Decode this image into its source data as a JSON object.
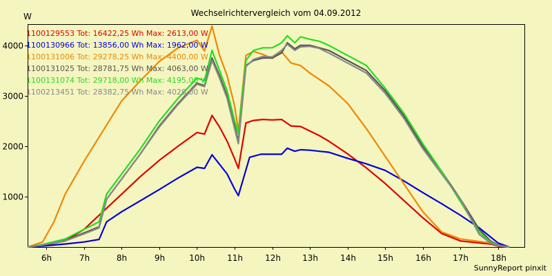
{
  "chart_data": {
    "type": "line",
    "title": "Wechselrichtervergleich vom 04.09.2012",
    "ylabel": "W",
    "xlabel": "",
    "footer": "SunnyReport pinxit",
    "xlim": [
      5.5,
      18.7
    ],
    "ylim": [
      0,
      4420
    ],
    "x_ticks": [
      6,
      7,
      8,
      9,
      10,
      11,
      12,
      13,
      14,
      15,
      16,
      17,
      18
    ],
    "x_tick_labels": [
      "6h",
      "7h",
      "8h",
      "9h",
      "10h",
      "11h",
      "12h",
      "13h",
      "14h",
      "15h",
      "16h",
      "17h",
      "18h"
    ],
    "y_ticks": [
      1000,
      2000,
      3000,
      4000
    ],
    "y_tick_labels": [
      "1000",
      "2000",
      "3000",
      "4000"
    ],
    "grid": false,
    "legend_position": "top-left",
    "series": [
      {
        "name": "1100129553",
        "label": "1100129553 Tot: 16422,25 Wh Max: 2613,00 W",
        "color": "#dd0000",
        "x": [
          5.5,
          5.9,
          6.5,
          7.0,
          7.5,
          8.0,
          8.5,
          9.0,
          9.5,
          10.0,
          10.2,
          10.4,
          10.6,
          10.8,
          11.0,
          11.1,
          11.3,
          11.5,
          11.75,
          12.0,
          12.25,
          12.5,
          12.75,
          13.0,
          13.25,
          13.5,
          14.0,
          14.5,
          15.0,
          15.5,
          16.0,
          16.5,
          17.0,
          17.5,
          17.8,
          18.0,
          18.3
        ],
        "values": [
          0,
          30,
          120,
          350,
          700,
          1050,
          1400,
          1720,
          2000,
          2270,
          2240,
          2610,
          2380,
          2100,
          1750,
          1560,
          2460,
          2510,
          2530,
          2520,
          2530,
          2400,
          2390,
          2300,
          2210,
          2100,
          1850,
          1570,
          1260,
          920,
          580,
          270,
          120,
          80,
          60,
          20,
          0
        ]
      },
      {
        "name": "1100130966",
        "label": "1100130966 Tot: 13856,00 Wh Max: 1962,00 W",
        "color": "#0000dd",
        "x": [
          5.5,
          5.9,
          6.5,
          7.0,
          7.4,
          7.6,
          8.0,
          8.5,
          9.0,
          9.5,
          10.0,
          10.2,
          10.4,
          10.6,
          10.8,
          11.0,
          11.1,
          11.4,
          11.7,
          12.0,
          12.25,
          12.4,
          12.6,
          12.75,
          13.0,
          13.25,
          13.5,
          14.0,
          14.5,
          15.0,
          15.5,
          16.0,
          16.5,
          17.0,
          17.5,
          17.8,
          18.0,
          18.3
        ],
        "values": [
          0,
          20,
          60,
          100,
          150,
          500,
          700,
          920,
          1140,
          1370,
          1580,
          1560,
          1830,
          1640,
          1450,
          1150,
          1020,
          1780,
          1840,
          1840,
          1840,
          1960,
          1900,
          1930,
          1920,
          1900,
          1880,
          1760,
          1650,
          1520,
          1310,
          1080,
          860,
          630,
          380,
          200,
          80,
          0
        ]
      },
      {
        "name": "1100131006",
        "label": "1100131006 Tot: 29278,25 Wh Max: 4400,00 W",
        "color": "#ee8800",
        "x": [
          5.5,
          5.9,
          6.2,
          6.5,
          7.0,
          7.5,
          8.0,
          8.5,
          9.0,
          9.5,
          10.0,
          10.2,
          10.4,
          10.6,
          10.8,
          11.0,
          11.1,
          11.3,
          11.5,
          11.75,
          12.0,
          12.25,
          12.5,
          12.75,
          13.0,
          13.5,
          14.0,
          14.5,
          15.0,
          15.5,
          16.0,
          16.5,
          17.0,
          17.5,
          17.8,
          18.0,
          18.3
        ],
        "values": [
          0,
          100,
          500,
          1050,
          1700,
          2300,
          2900,
          3300,
          3680,
          3950,
          4100,
          3890,
          4380,
          3800,
          3400,
          2800,
          2300,
          3800,
          3880,
          3820,
          3740,
          3870,
          3650,
          3600,
          3450,
          3200,
          2850,
          2350,
          1800,
          1250,
          700,
          300,
          160,
          110,
          80,
          30,
          0
        ]
      },
      {
        "name": "1100131025",
        "label": "1100131025 Tot: 28781,75 Wh Max: 4063,00 W",
        "color": "#555555",
        "x": [
          5.5,
          5.9,
          6.5,
          7.0,
          7.4,
          7.6,
          8.0,
          8.5,
          9.0,
          9.5,
          10.0,
          10.2,
          10.4,
          10.6,
          10.8,
          11.0,
          11.1,
          11.3,
          11.5,
          11.75,
          12.0,
          12.25,
          12.4,
          12.6,
          12.75,
          13.0,
          13.25,
          13.5,
          14.0,
          14.5,
          15.0,
          15.5,
          16.0,
          16.5,
          17.0,
          17.5,
          17.8,
          18.0,
          18.3
        ],
        "values": [
          0,
          40,
          130,
          280,
          400,
          950,
          1350,
          1850,
          2400,
          2850,
          3250,
          3200,
          3750,
          3400,
          3000,
          2400,
          2100,
          3600,
          3700,
          3750,
          3750,
          3850,
          4050,
          3930,
          4000,
          4000,
          3950,
          3900,
          3700,
          3500,
          3100,
          2600,
          2000,
          1500,
          950,
          350,
          120,
          40,
          0
        ]
      },
      {
        "name": "1100131074",
        "label": "1100131074 Tot: 29718,00 Wh Max: 4195,00 W",
        "color": "#22dd22",
        "x": [
          5.5,
          5.9,
          6.5,
          7.0,
          7.4,
          7.6,
          8.0,
          8.5,
          9.0,
          9.5,
          10.0,
          10.2,
          10.4,
          10.6,
          10.8,
          11.0,
          11.1,
          11.3,
          11.5,
          11.75,
          12.0,
          12.25,
          12.4,
          12.6,
          12.75,
          13.0,
          13.25,
          13.5,
          14.0,
          14.5,
          15.0,
          15.5,
          16.0,
          16.5,
          17.0,
          17.5,
          17.8,
          18.0,
          18.3
        ],
        "values": [
          0,
          50,
          160,
          350,
          500,
          1050,
          1450,
          1950,
          2500,
          2950,
          3350,
          3300,
          3900,
          3500,
          3100,
          2500,
          2250,
          3700,
          3900,
          3950,
          3950,
          4050,
          4190,
          4050,
          4170,
          4120,
          4080,
          4000,
          3800,
          3600,
          3150,
          2650,
          2050,
          1500,
          900,
          300,
          100,
          30,
          0
        ]
      },
      {
        "name": "1100213451",
        "label": "1100213451 Tot: 28382,75 Wh Max: 4028,00 W",
        "color": "#888888",
        "x": [
          5.5,
          5.9,
          6.5,
          7.0,
          7.4,
          7.6,
          8.0,
          8.5,
          9.0,
          9.5,
          10.0,
          10.2,
          10.4,
          10.6,
          10.8,
          11.0,
          11.1,
          11.3,
          11.5,
          11.75,
          12.0,
          12.25,
          12.4,
          12.6,
          12.75,
          13.0,
          13.25,
          13.5,
          14.0,
          14.5,
          15.0,
          15.5,
          16.0,
          16.5,
          17.0,
          17.5,
          17.8,
          18.0,
          18.3
        ],
        "values": [
          0,
          40,
          120,
          260,
          380,
          950,
          1350,
          1850,
          2380,
          2830,
          3230,
          3180,
          3700,
          3350,
          2950,
          2350,
          2050,
          3580,
          3720,
          3780,
          3770,
          3900,
          4020,
          3900,
          3970,
          3980,
          3940,
          3850,
          3650,
          3450,
          3050,
          2550,
          1950,
          1450,
          950,
          250,
          80,
          30,
          0
        ]
      }
    ]
  }
}
